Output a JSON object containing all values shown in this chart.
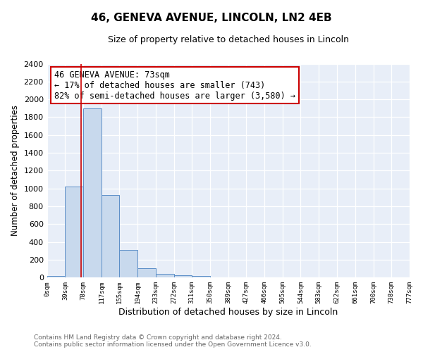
{
  "title": "46, GENEVA AVENUE, LINCOLN, LN2 4EB",
  "subtitle": "Size of property relative to detached houses in Lincoln",
  "xlabel": "Distribution of detached houses by size in Lincoln",
  "ylabel": "Number of detached properties",
  "bar_color": "#c8d9ed",
  "bar_edge_color": "#5b8ec7",
  "background_color": "#e8eef8",
  "grid_color": "#ffffff",
  "annotation_box_color": "#ffffff",
  "annotation_box_edge": "#cc0000",
  "vline_color": "#cc0000",
  "vline_x": 73,
  "bin_edges": [
    0,
    39,
    78,
    117,
    155,
    194,
    233,
    272,
    311,
    350,
    389,
    427,
    466,
    505,
    544,
    583,
    622,
    661,
    700,
    738,
    777
  ],
  "bin_labels": [
    "0sqm",
    "39sqm",
    "78sqm",
    "117sqm",
    "155sqm",
    "194sqm",
    "233sqm",
    "272sqm",
    "311sqm",
    "350sqm",
    "389sqm",
    "427sqm",
    "466sqm",
    "505sqm",
    "544sqm",
    "583sqm",
    "622sqm",
    "661sqm",
    "700sqm",
    "738sqm",
    "777sqm"
  ],
  "bar_heights": [
    20,
    1020,
    1900,
    930,
    310,
    105,
    45,
    25,
    20,
    5,
    0,
    0,
    0,
    0,
    0,
    0,
    0,
    0,
    0,
    5
  ],
  "ylim": [
    0,
    2400
  ],
  "yticks": [
    0,
    200,
    400,
    600,
    800,
    1000,
    1200,
    1400,
    1600,
    1800,
    2000,
    2200,
    2400
  ],
  "annotation_lines": [
    "46 GENEVA AVENUE: 73sqm",
    "← 17% of detached houses are smaller (743)",
    "82% of semi-detached houses are larger (3,580) →"
  ],
  "footer_lines": [
    "Contains HM Land Registry data © Crown copyright and database right 2024.",
    "Contains public sector information licensed under the Open Government Licence v3.0."
  ],
  "fig_bg": "#ffffff"
}
